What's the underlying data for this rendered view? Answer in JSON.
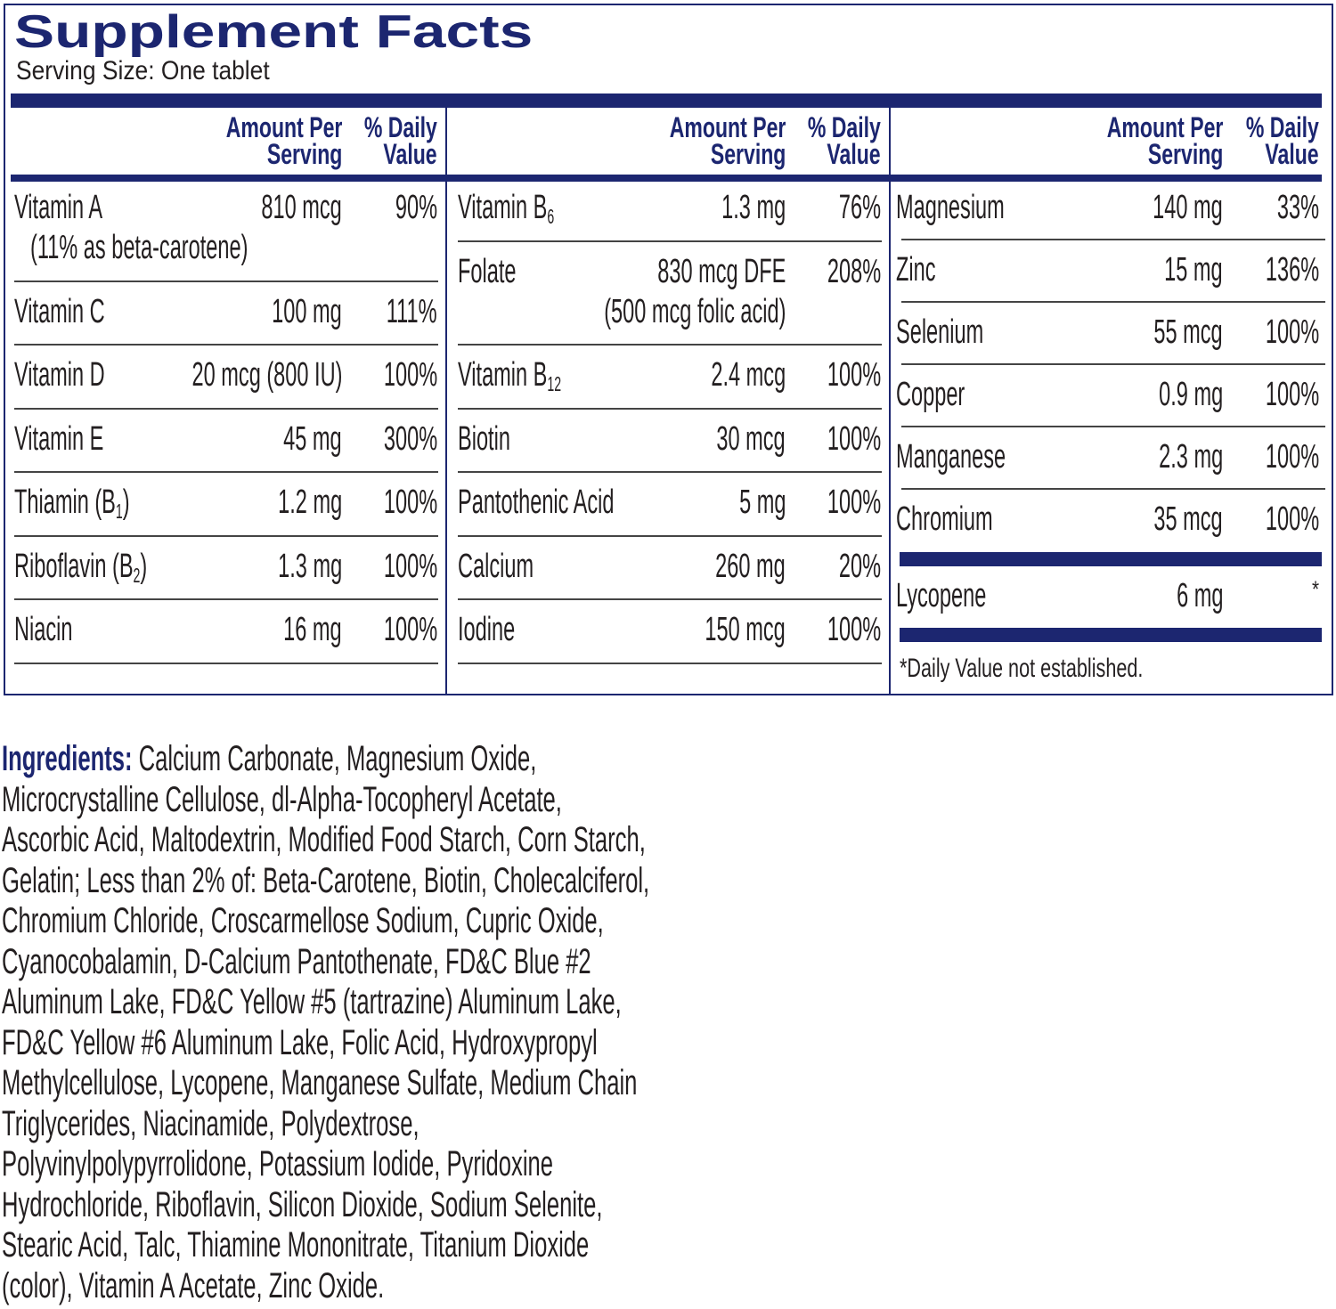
{
  "header": {
    "title": "Supplement Facts",
    "serving_size": "Serving Size: One tablet"
  },
  "columns": [
    {
      "head_amount": [
        "Amount Per",
        "Serving"
      ],
      "head_dv": [
        "% Daily",
        "Value"
      ],
      "rows": [
        {
          "name": [
            "Vitamin A"
          ],
          "name_note": "(11% as beta-carotene)",
          "amount": "810 mcg",
          "dv": "90%"
        },
        {
          "name": [
            "Vitamin C"
          ],
          "amount": "100 mg",
          "dv": "111%"
        },
        {
          "name": [
            "Vitamin D"
          ],
          "amount": "20 mcg (800 IU)",
          "dv": "100%"
        },
        {
          "name": [
            "Vitamin E"
          ],
          "amount": "45 mg",
          "dv": "300%"
        },
        {
          "name": [
            "Thiamin (B",
            "1",
            ")"
          ],
          "amount": "1.2 mg",
          "dv": "100%"
        },
        {
          "name": [
            "Riboflavin (B",
            "2",
            ")"
          ],
          "amount": "1.3 mg",
          "dv": "100%"
        },
        {
          "name": [
            "Niacin"
          ],
          "amount": "16 mg",
          "dv": "100%"
        }
      ]
    },
    {
      "head_amount": [
        "Amount Per",
        "Serving"
      ],
      "head_dv": [
        "% Daily",
        "Value"
      ],
      "rows": [
        {
          "name": [
            "Vitamin B",
            "6"
          ],
          "amount": "1.3 mg",
          "dv": "76%"
        },
        {
          "name": [
            "Folate"
          ],
          "amount": "830 mcg DFE",
          "amount_note": "(500 mcg folic acid)",
          "dv": "208%"
        },
        {
          "name": [
            "Vitamin B",
            "12"
          ],
          "amount": "2.4 mcg",
          "dv": "100%"
        },
        {
          "name": [
            "Biotin"
          ],
          "amount": "30 mcg",
          "dv": "100%"
        },
        {
          "name": [
            "Pantothenic Acid"
          ],
          "amount": "5 mg",
          "dv": "100%"
        },
        {
          "name": [
            "Calcium"
          ],
          "amount": "260 mg",
          "dv": "20%"
        },
        {
          "name": [
            "Iodine"
          ],
          "amount": "150 mcg",
          "dv": "100%"
        }
      ]
    },
    {
      "head_amount": [
        "Amount Per",
        "Serving"
      ],
      "head_dv": [
        "% Daily",
        "Value"
      ],
      "rows": [
        {
          "name": [
            "Magnesium"
          ],
          "amount": "140 mg",
          "dv": "33%"
        },
        {
          "name": [
            "Zinc"
          ],
          "amount": "15 mg",
          "dv": "136%"
        },
        {
          "name": [
            "Selenium"
          ],
          "amount": "55 mcg",
          "dv": "100%"
        },
        {
          "name": [
            "Copper"
          ],
          "amount": "0.9 mg",
          "dv": "100%"
        },
        {
          "name": [
            "Manganese"
          ],
          "amount": "2.3 mg",
          "dv": "100%"
        },
        {
          "name": [
            "Chromium"
          ],
          "amount": "35 mcg",
          "dv": "100%"
        }
      ],
      "extra": {
        "name": [
          "Lycopene"
        ],
        "amount": "6 mg",
        "dv": "*"
      },
      "footnote": "*Daily Value not established."
    }
  ],
  "ingredients": {
    "label": "Ingredients:",
    "lines": [
      " Calcium Carbonate, Magnesium Oxide,",
      "Microcrystalline Cellulose, dl-Alpha-Tocopheryl Acetate,",
      "Ascorbic Acid, Maltodextrin, Modified Food Starch, Corn Starch,",
      "Gelatin; Less than 2% of: Beta-Carotene, Biotin, Cholecalciferol,",
      "Chromium Chloride, Croscarmellose Sodium, Cupric Oxide,",
      "Cyanocobalamin, D-Calcium Pantothenate, FD&C Blue #2",
      "Aluminum Lake, FD&C Yellow #5 (tartrazine) Aluminum Lake,",
      "FD&C Yellow #6 Aluminum Lake, Folic Acid, Hydroxypropyl",
      "Methylcellulose, Lycopene, Manganese Sulfate, Medium Chain",
      "Triglycerides, Niacinamide, Polydextrose,",
      "Polyvinylpolypyrrolidone, Potassium Iodide, Pyridoxine",
      "Hydrochloride, Riboflavin, Silicon Dioxide, Sodium Selenite,",
      "Stearic Acid, Talc, Thiamine Mononitrate, Titanium Dioxide",
      "(color), Vitamin A Acetate, Zinc Oxide."
    ]
  }
}
